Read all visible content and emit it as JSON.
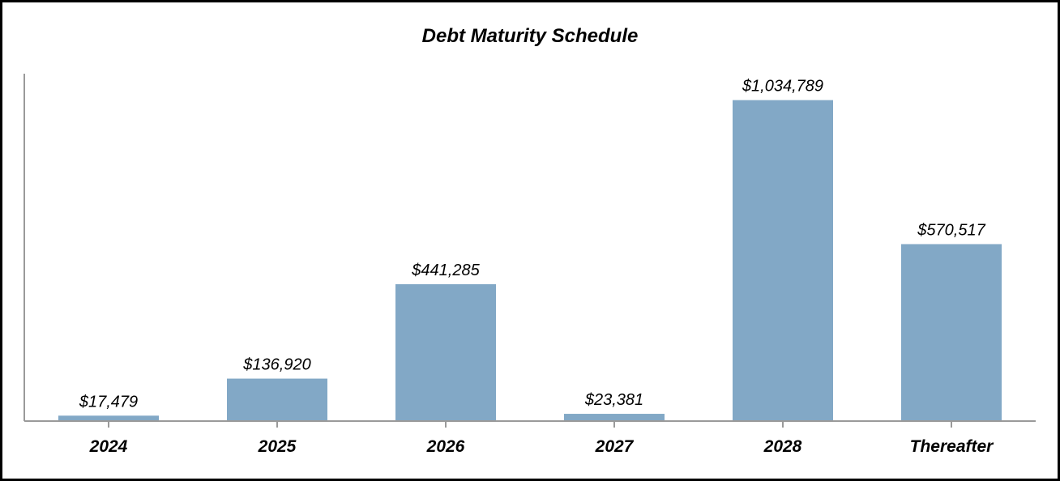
{
  "chart_data": {
    "type": "bar",
    "title": "Debt Maturity Schedule",
    "categories": [
      "2024",
      "2025",
      "2026",
      "2027",
      "2028",
      "Thereafter"
    ],
    "values": [
      17479,
      136920,
      441285,
      23381,
      1034789,
      570517
    ],
    "value_labels": [
      "$17,479",
      "$136,920",
      "$441,285",
      "$23,381",
      "$1,034,789",
      "$570,517"
    ],
    "xlabel": "",
    "ylabel": "",
    "ylim": [
      0,
      1120000
    ],
    "grid": false,
    "legend": "none",
    "colors": {
      "bar": "#82a8c6",
      "axis": "#9a9a9a",
      "border": "#000000"
    }
  }
}
